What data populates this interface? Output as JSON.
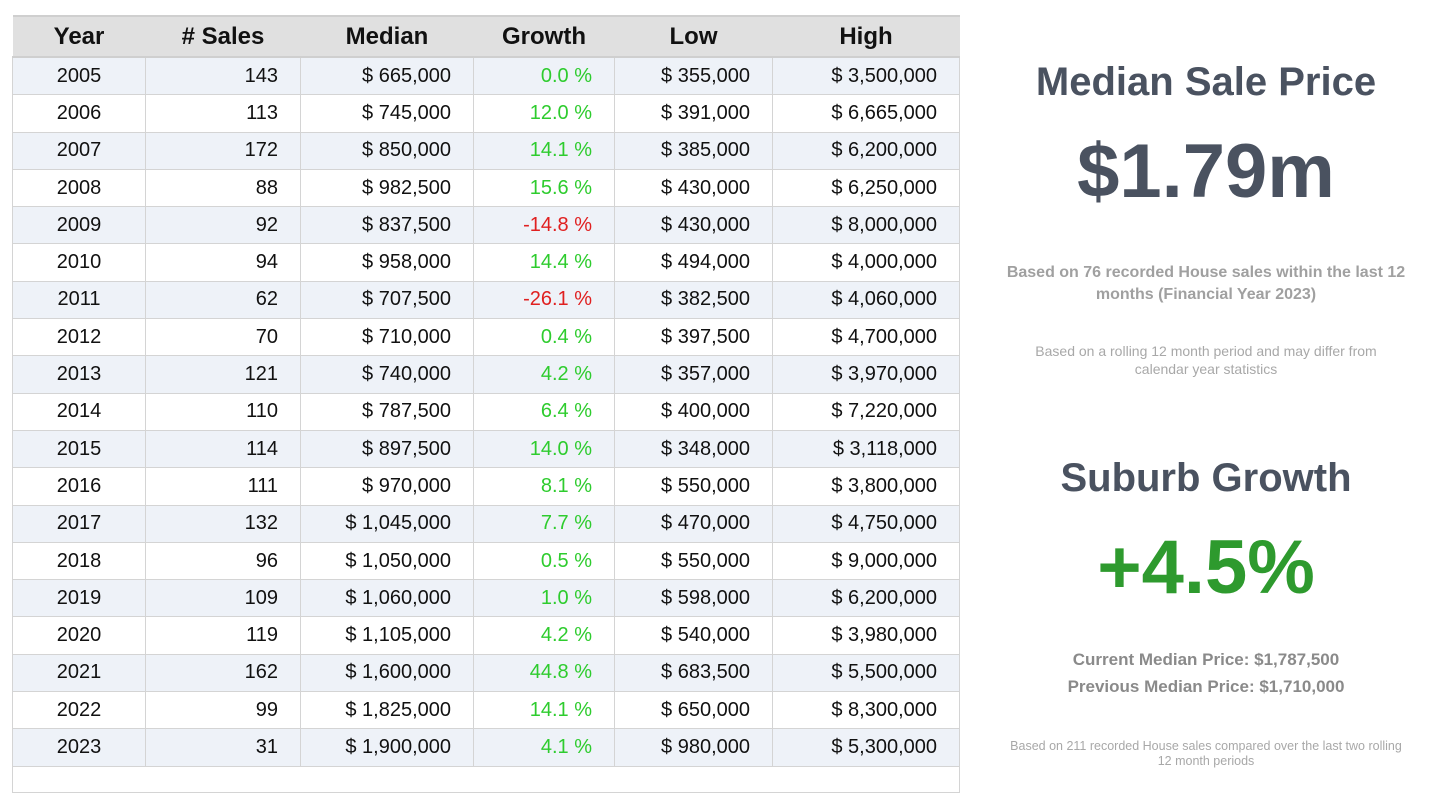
{
  "table": {
    "columns": [
      "Year",
      "# Sales",
      "Median",
      "Growth",
      "Low",
      "High"
    ],
    "rows": [
      [
        "2005",
        "143",
        "$ 665,000",
        "0.0 %",
        "$ 355,000",
        "$ 3,500,000"
      ],
      [
        "2006",
        "113",
        "$ 745,000",
        "12.0 %",
        "$ 391,000",
        "$ 6,665,000"
      ],
      [
        "2007",
        "172",
        "$ 850,000",
        "14.1 %",
        "$ 385,000",
        "$ 6,200,000"
      ],
      [
        "2008",
        "88",
        "$ 982,500",
        "15.6 %",
        "$ 430,000",
        "$ 6,250,000"
      ],
      [
        "2009",
        "92",
        "$ 837,500",
        "-14.8 %",
        "$ 430,000",
        "$ 8,000,000"
      ],
      [
        "2010",
        "94",
        "$ 958,000",
        "14.4 %",
        "$ 494,000",
        "$ 4,000,000"
      ],
      [
        "2011",
        "62",
        "$ 707,500",
        "-26.1 %",
        "$ 382,500",
        "$ 4,060,000"
      ],
      [
        "2012",
        "70",
        "$ 710,000",
        "0.4 %",
        "$ 397,500",
        "$ 4,700,000"
      ],
      [
        "2013",
        "121",
        "$ 740,000",
        "4.2 %",
        "$ 357,000",
        "$ 3,970,000"
      ],
      [
        "2014",
        "110",
        "$ 787,500",
        "6.4 %",
        "$ 400,000",
        "$ 7,220,000"
      ],
      [
        "2015",
        "114",
        "$ 897,500",
        "14.0 %",
        "$ 348,000",
        "$ 3,118,000"
      ],
      [
        "2016",
        "111",
        "$ 970,000",
        "8.1 %",
        "$ 550,000",
        "$ 3,800,000"
      ],
      [
        "2017",
        "132",
        "$ 1,045,000",
        "7.7 %",
        "$ 470,000",
        "$ 4,750,000"
      ],
      [
        "2018",
        "96",
        "$ 1,050,000",
        "0.5 %",
        "$ 550,000",
        "$ 9,000,000"
      ],
      [
        "2019",
        "109",
        "$ 1,060,000",
        "1.0 %",
        "$ 598,000",
        "$ 6,200,000"
      ],
      [
        "2020",
        "119",
        "$ 1,105,000",
        "4.2 %",
        "$ 540,000",
        "$ 3,980,000"
      ],
      [
        "2021",
        "162",
        "$ 1,600,000",
        "44.8 %",
        "$ 683,500",
        "$ 5,500,000"
      ],
      [
        "2022",
        "99",
        "$ 1,825,000",
        "14.1 %",
        "$ 650,000",
        "$ 8,300,000"
      ],
      [
        "2023",
        "31",
        "$ 1,900,000",
        "4.1 %",
        "$ 980,000",
        "$ 5,300,000"
      ]
    ],
    "positive_color": "#2ecc2e",
    "negative_color": "#e02020"
  },
  "median_panel": {
    "title": "Median Sale Price",
    "value": "$1.79m",
    "note": "Based on 76 recorded House sales within the last 12 months (Financial Year 2023)",
    "footnote": "Based on a rolling 12 month period and may differ from calendar year statistics"
  },
  "growth_panel": {
    "title": "Suburb Growth",
    "value": "+4.5%",
    "value_color": "#2e9a2e",
    "current": "Current Median Price: $1,787,500",
    "previous": "Previous Median Price: $1,710,000",
    "footnote": "Based on 211 recorded House sales compared over the last two rolling 12 month periods"
  }
}
